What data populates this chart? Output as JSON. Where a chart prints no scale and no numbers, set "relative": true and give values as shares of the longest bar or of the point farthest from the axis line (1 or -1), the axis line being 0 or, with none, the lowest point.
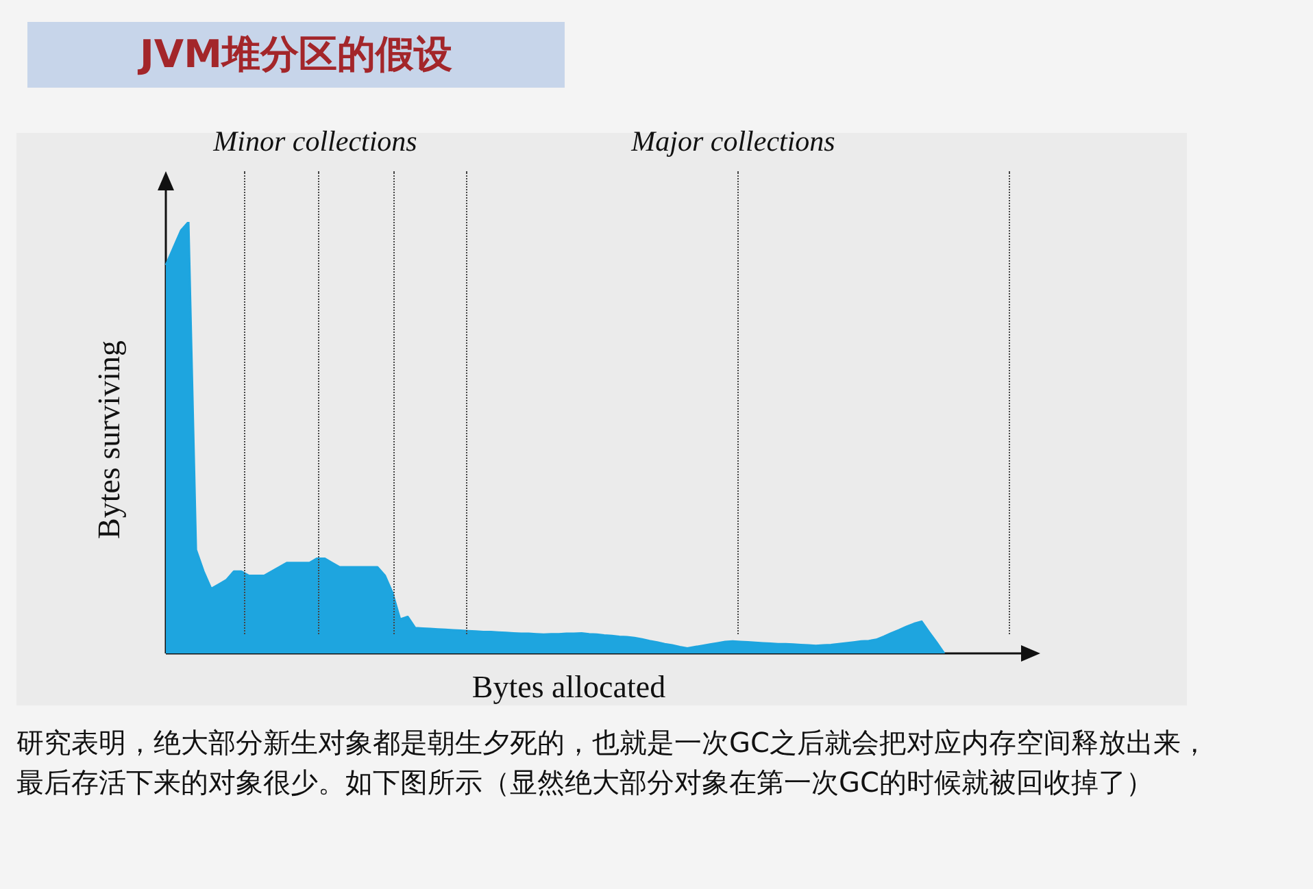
{
  "chart_data": {
    "type": "area",
    "title": "JVM堆分区的假设",
    "xlabel": "Bytes allocated",
    "ylabel": "Bytes surviving",
    "relative": true,
    "legend": false,
    "marker": "none",
    "annotations": [
      "Minor collections",
      "Major collections",
      "研究表明，绝大部分新生对象都是朝生夕死的，也就是一次GC之后就会把对应内存空间释放出来，最后存活下来的对象很少。如下图所示（显然绝大部分对象在第一次GC的时候就被回收掉了）"
    ],
    "categories": [
      null,
      null,
      null,
      null,
      null,
      null,
      null,
      null,
      null,
      null,
      null,
      null,
      null,
      null,
      null,
      null,
      null,
      null,
      null,
      null,
      null,
      null,
      null,
      null,
      null,
      null,
      null,
      null,
      null,
      null,
      null,
      null,
      null,
      null,
      null,
      null,
      null,
      null,
      null,
      null,
      null,
      null,
      null,
      null,
      null,
      null,
      null,
      null,
      null,
      null,
      null,
      null,
      null,
      null,
      null,
      null,
      null,
      null,
      null,
      null,
      null,
      null,
      null,
      null,
      null,
      null,
      null,
      null,
      null,
      null,
      null,
      null,
      null,
      null,
      null,
      null,
      null,
      null,
      null,
      null,
      null,
      null,
      null,
      null,
      null,
      null,
      null,
      null,
      null,
      null,
      null,
      null,
      null,
      null,
      null,
      null,
      null,
      null,
      null,
      null,
      null,
      null,
      null,
      null
    ],
    "series": [
      {
        "color": "#1ea5df",
        "values": [
          0.9,
          0.94,
          0.98,
          1,
          0.24,
          0.19,
          0.15,
          0.16,
          0.17,
          0.19,
          0.19,
          0.18,
          0.18,
          0.18,
          0.19,
          0.2,
          0.21,
          0.21,
          0.21,
          0.21,
          0.22,
          0.22,
          0.21,
          0.2,
          0.2,
          0.2,
          0.2,
          0.2,
          0.2,
          0.18,
          0.14,
          0.079,
          0.085,
          0.059,
          0.058,
          0.057,
          0.056,
          0.055,
          0.054,
          0.053,
          0.052,
          0.051,
          0.05,
          0.05,
          0.049,
          0.048,
          0.047,
          0.046,
          0.046,
          0.045,
          0.044,
          0.045,
          0.045,
          0.046,
          0.046,
          0.047,
          0.045,
          0.044,
          0.042,
          0.041,
          0.039,
          0.038,
          0.036,
          0.033,
          0.029,
          0.026,
          0.022,
          0.019,
          0.015,
          0.012,
          0.015,
          0.018,
          0.021,
          0.024,
          0.027,
          0.028,
          0.027,
          0.026,
          0.025,
          0.024,
          0.023,
          0.022,
          0.022,
          0.021,
          0.02,
          0.019,
          0.018,
          0.019,
          0.02,
          0.022,
          0.024,
          0.026,
          0.028,
          0.029,
          0.032,
          0.039,
          0.047,
          0.054,
          0.062,
          0.069,
          0.074,
          0.049,
          0.025,
          0
        ]
      }
    ]
  }
}
